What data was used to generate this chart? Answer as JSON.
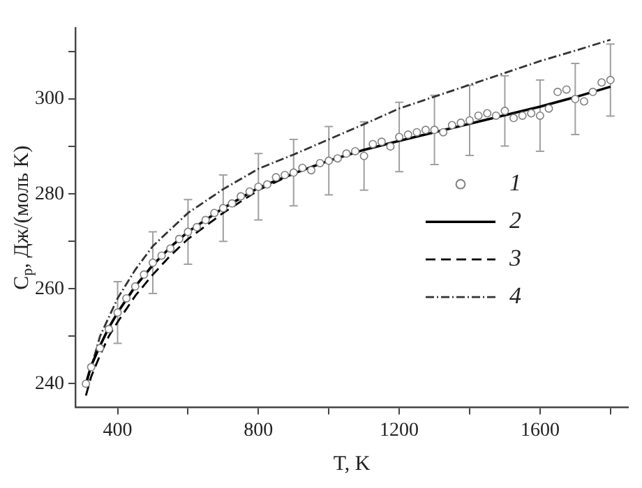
{
  "chart_data": {
    "type": "line",
    "xlabel": "T, K",
    "ylabel": "C$_{p}$, Дж/(моль K)",
    "xlim": [
      280,
      1850
    ],
    "ylim": [
      235,
      315
    ],
    "xticks": [
      400,
      {
        "value": 600,
        "label": null
      },
      800,
      {
        "value": 1000,
        "label": null
      },
      1200,
      {
        "value": 1400,
        "label": null
      },
      1600,
      {
        "value": 1800,
        "label": null
      }
    ],
    "yticks": [
      240,
      {
        "value": 250,
        "label": null
      },
      260,
      {
        "value": 270,
        "label": null
      },
      280,
      {
        "value": 290,
        "label": null
      },
      300,
      {
        "value": 310,
        "label": null
      }
    ],
    "legend": "right",
    "series": [
      {
        "name": "1",
        "type": "scatter",
        "marker": "circle",
        "color": "#808080",
        "x": [
          310,
          325,
          350,
          375,
          400,
          425,
          450,
          475,
          500,
          525,
          550,
          575,
          600,
          625,
          650,
          675,
          700,
          725,
          750,
          775,
          800,
          825,
          850,
          875,
          900,
          925,
          950,
          975,
          1000,
          1025,
          1050,
          1075,
          1100,
          1125,
          1150,
          1175,
          1200,
          1225,
          1250,
          1275,
          1300,
          1325,
          1350,
          1375,
          1400,
          1425,
          1450,
          1475,
          1500,
          1525,
          1550,
          1575,
          1600,
          1625,
          1650,
          1675,
          1700,
          1725,
          1750,
          1775,
          1800
        ],
        "values": [
          240.0,
          243.5,
          247.5,
          251.5,
          255.0,
          258.0,
          260.5,
          263.0,
          265.5,
          267.0,
          268.5,
          270.5,
          272.0,
          273.0,
          274.5,
          276.0,
          277.0,
          278.0,
          279.5,
          280.5,
          281.5,
          282.0,
          283.5,
          284.0,
          284.5,
          285.5,
          285.0,
          286.5,
          287.0,
          287.5,
          288.5,
          289.0,
          288.0,
          290.5,
          291.0,
          290.0,
          292.0,
          292.5,
          293.0,
          293.5,
          293.5,
          293.0,
          294.5,
          295.0,
          295.5,
          296.5,
          297.0,
          296.5,
          297.5,
          296.0,
          296.5,
          297.0,
          296.5,
          298.0,
          301.5,
          302.0,
          300.0,
          299.5,
          301.5,
          303.5,
          304.0
        ],
        "errors": [
          null,
          null,
          null,
          null,
          6.5,
          null,
          null,
          null,
          6.5,
          null,
          null,
          null,
          6.8,
          null,
          null,
          null,
          7,
          null,
          null,
          null,
          7,
          null,
          null,
          null,
          7,
          null,
          null,
          null,
          7.2,
          null,
          null,
          null,
          7.2,
          null,
          null,
          null,
          7.3,
          null,
          null,
          null,
          7.3,
          null,
          null,
          null,
          7.4,
          null,
          null,
          null,
          7.4,
          null,
          null,
          null,
          7.5,
          null,
          null,
          null,
          7.5,
          null,
          null,
          null,
          7.6
        ]
      },
      {
        "name": "2",
        "type": "line",
        "marker": "none",
        "line_style": "solid",
        "color": "#000000",
        "x": [
          310,
          325,
          350,
          375,
          400,
          450,
          500,
          550,
          600,
          700,
          800,
          900,
          1000,
          1100,
          1200,
          1300,
          1400,
          1500,
          1600,
          1700,
          1800
        ],
        "values": [
          240,
          243.8,
          248,
          251.8,
          255,
          260.5,
          265,
          268.8,
          272,
          277,
          281.3,
          284.3,
          287,
          289.3,
          291.2,
          293,
          294.8,
          296.6,
          298.4,
          300.4,
          302.6
        ]
      },
      {
        "name": "3",
        "type": "line",
        "marker": "none",
        "line_style": "dashed",
        "color": "#000000",
        "x": [
          310,
          325,
          350,
          375,
          400,
          450,
          500,
          550,
          600,
          700,
          800,
          900
        ],
        "values": [
          237.5,
          241.5,
          246,
          250,
          253,
          258.5,
          263,
          267,
          270.5,
          276,
          280.8,
          284.3
        ]
      },
      {
        "name": "4",
        "type": "line",
        "marker": "none",
        "line_style": "dashdot",
        "color": "#333333",
        "x": [
          310,
          350,
          400,
          450,
          500,
          600,
          700,
          800,
          900,
          1000,
          1100,
          1200,
          1300,
          1400,
          1500,
          1600,
          1700,
          1800
        ],
        "values": [
          239.5,
          250,
          258,
          264,
          269,
          276,
          281,
          285.3,
          288.3,
          291.5,
          294.7,
          298,
          300.5,
          303,
          305.5,
          308,
          310.2,
          312.5
        ]
      }
    ]
  }
}
